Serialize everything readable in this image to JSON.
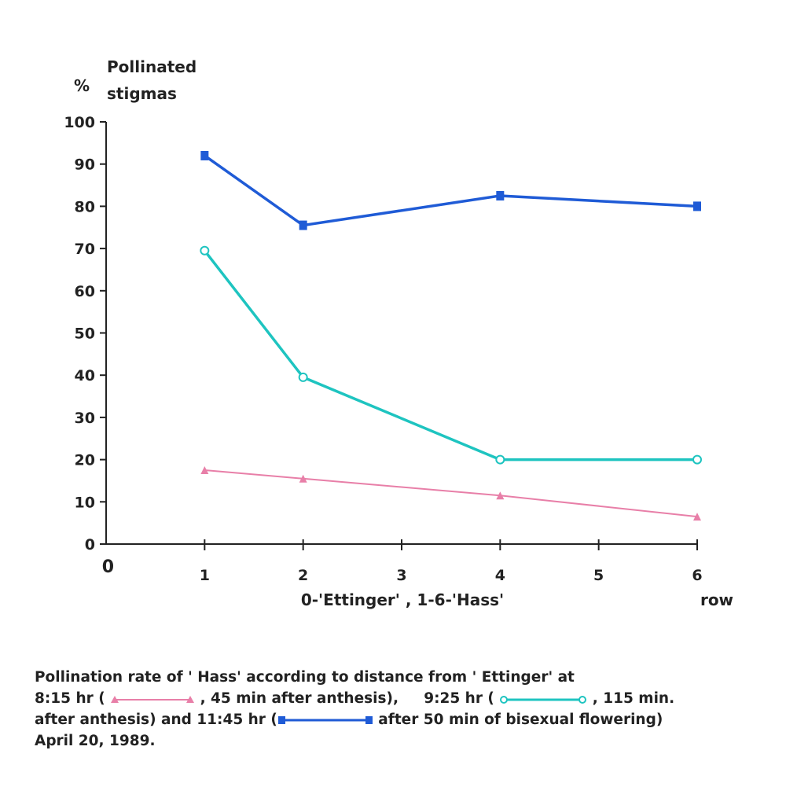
{
  "chart_data": {
    "type": "line",
    "ylabel_symbol": "%",
    "ylabel_lines": [
      "Pollinated",
      "stigmas"
    ],
    "x_origin_label": "0",
    "xlabel": "0-'Ettinger' , 1-6-'Hass'",
    "x_unit_label": "row",
    "xlim": [
      0,
      6
    ],
    "ylim": [
      0,
      100
    ],
    "x_ticks": [
      1,
      2,
      3,
      4,
      5,
      6
    ],
    "y_ticks": [
      0,
      10,
      20,
      30,
      40,
      50,
      60,
      70,
      80,
      90,
      100
    ],
    "series": [
      {
        "marker": "triangle",
        "color": "#e87fa8",
        "x": [
          1,
          2,
          4,
          6
        ],
        "values": [
          17.5,
          15.5,
          11.5,
          6.5
        ]
      },
      {
        "marker": "circle",
        "color": "#1ec4c0",
        "x": [
          1,
          2,
          4,
          6
        ],
        "values": [
          69.5,
          39.5,
          20,
          20
        ]
      },
      {
        "marker": "square",
        "color": "#1f5bd6",
        "x": [
          1,
          2,
          4,
          6
        ],
        "values": [
          92,
          75.5,
          82.5,
          80
        ]
      }
    ]
  },
  "caption": {
    "line1": "Pollination rate of ' Hass' according to distance from ' Ettinger' at",
    "line2_a": "8:15 hr (",
    "line2_b": ", 45 min after anthesis),",
    "line2_c": "9:25 hr (",
    "line2_d": ", 115 min.",
    "line3_a": "after anthesis) and 11:45 hr (",
    "line3_b": "after 50 min of bisexual flowering)",
    "line4": "April 20, 1989."
  }
}
